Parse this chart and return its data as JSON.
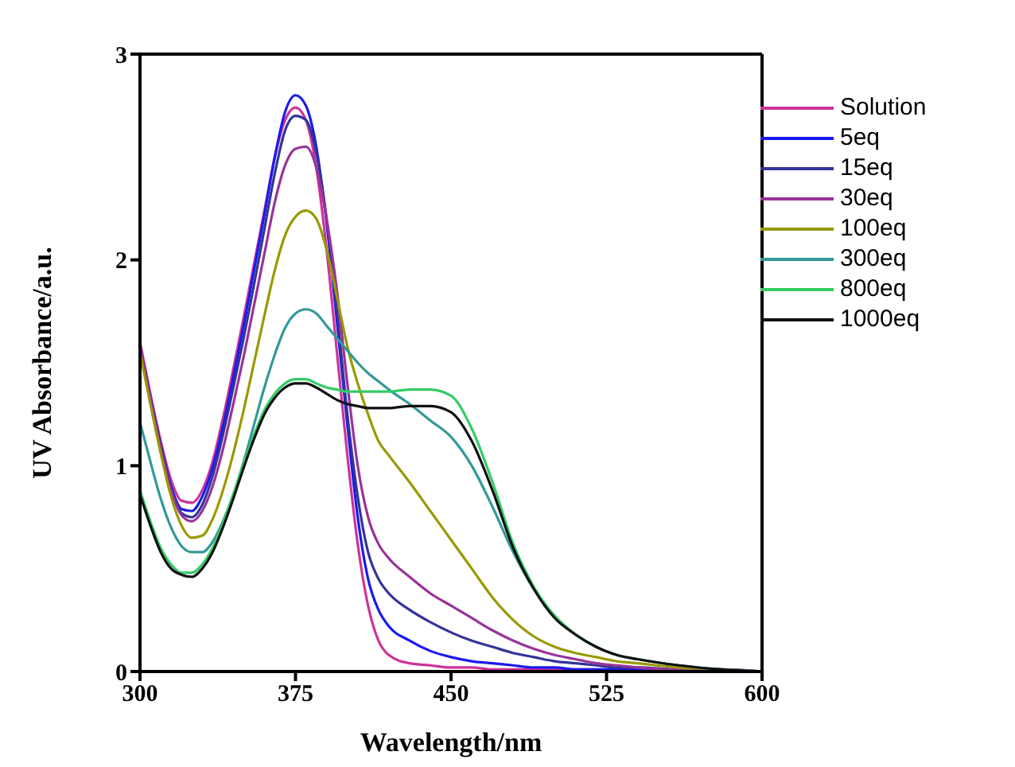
{
  "chart_data": {
    "type": "line",
    "xlabel": "Wavelength/nm",
    "ylabel": "UV Absorbance/a.u.",
    "x": [
      300,
      305,
      310,
      315,
      320,
      325,
      330,
      335,
      340,
      345,
      350,
      355,
      360,
      365,
      370,
      375,
      380,
      385,
      390,
      395,
      400,
      405,
      410,
      415,
      420,
      430,
      440,
      450,
      460,
      470,
      480,
      490,
      500,
      510,
      520,
      530,
      540,
      560,
      580,
      600
    ],
    "xlim": [
      300,
      600
    ],
    "xticks": [
      300,
      375,
      450,
      525,
      600
    ],
    "ylim": [
      0,
      3
    ],
    "yticks": [
      0,
      1,
      2,
      3
    ],
    "grid": false,
    "legend": "top right",
    "marker": "none",
    "line_style": "solid",
    "series": [
      {
        "name": "Solution",
        "color": "#cc3399",
        "values": [
          1.6,
          1.35,
          1.12,
          0.93,
          0.83,
          0.82,
          0.88,
          1.02,
          1.23,
          1.47,
          1.72,
          1.98,
          2.24,
          2.5,
          2.68,
          2.74,
          2.68,
          2.45,
          2.05,
          1.55,
          1.05,
          0.62,
          0.32,
          0.15,
          0.08,
          0.04,
          0.03,
          0.02,
          0.02,
          0.01,
          0.01,
          0.01,
          0.01,
          0.01,
          0.01,
          null,
          null,
          null,
          null,
          null
        ]
      },
      {
        "name": "5eq",
        "color": "#1a1aee",
        "values": [
          null,
          null,
          1.1,
          0.9,
          0.79,
          0.78,
          0.85,
          0.99,
          1.19,
          1.43,
          1.68,
          1.95,
          2.22,
          2.5,
          2.72,
          2.8,
          2.75,
          2.55,
          2.18,
          1.7,
          1.2,
          0.75,
          0.45,
          0.3,
          0.22,
          0.15,
          0.1,
          0.07,
          0.05,
          0.04,
          0.03,
          0.02,
          0.02,
          0.01,
          0.01,
          0.01,
          0.01,
          0,
          null,
          null
        ]
      },
      {
        "name": "15eq",
        "color": "#333399",
        "values": [
          1.58,
          1.33,
          1.1,
          0.89,
          0.77,
          0.75,
          0.81,
          0.95,
          1.15,
          1.38,
          1.62,
          1.88,
          2.15,
          2.42,
          2.63,
          2.7,
          2.68,
          2.52,
          2.2,
          1.75,
          1.25,
          0.85,
          0.58,
          0.45,
          0.38,
          0.3,
          0.24,
          0.19,
          0.15,
          0.12,
          0.09,
          0.07,
          0.05,
          0.04,
          0.03,
          0.02,
          0.02,
          0.01,
          0.01,
          0
        ]
      },
      {
        "name": "30eq",
        "color": "#993399",
        "values": [
          1.57,
          1.32,
          1.08,
          0.88,
          0.76,
          0.73,
          0.78,
          0.9,
          1.08,
          1.3,
          1.53,
          1.78,
          2.03,
          2.28,
          2.46,
          2.54,
          2.55,
          2.45,
          2.2,
          1.85,
          1.4,
          1.0,
          0.75,
          0.62,
          0.55,
          0.46,
          0.38,
          0.32,
          0.26,
          0.2,
          0.15,
          0.11,
          0.08,
          0.06,
          0.04,
          0.03,
          0.02,
          0.01,
          0.01,
          0
        ]
      },
      {
        "name": "100eq",
        "color": "#999900",
        "values": [
          1.55,
          1.3,
          1.06,
          0.85,
          0.71,
          0.65,
          0.66,
          0.74,
          0.88,
          1.06,
          1.27,
          1.5,
          1.73,
          1.95,
          2.12,
          2.21,
          2.24,
          2.2,
          2.05,
          1.82,
          1.58,
          1.4,
          1.25,
          1.12,
          1.05,
          0.92,
          0.78,
          0.64,
          0.5,
          0.36,
          0.25,
          0.17,
          0.12,
          0.09,
          0.07,
          0.05,
          0.04,
          0.02,
          0.01,
          0
        ]
      },
      {
        "name": "300eq",
        "color": "#339999",
        "values": [
          1.21,
          1.02,
          0.84,
          0.7,
          0.61,
          0.58,
          0.58,
          0.63,
          0.73,
          0.86,
          1.02,
          1.2,
          1.38,
          1.54,
          1.67,
          1.74,
          1.76,
          1.74,
          1.68,
          1.62,
          1.56,
          1.5,
          1.45,
          1.41,
          1.37,
          1.3,
          1.22,
          1.14,
          1.0,
          0.8,
          0.58,
          0.4,
          0.27,
          0.18,
          0.12,
          0.08,
          0.06,
          0.03,
          0.01,
          0
        ]
      },
      {
        "name": "800eq",
        "color": "#33cc66",
        "values": [
          0.88,
          0.73,
          0.6,
          0.52,
          0.48,
          0.48,
          0.52,
          0.6,
          0.72,
          0.86,
          1.01,
          1.15,
          1.27,
          1.35,
          1.4,
          1.42,
          1.42,
          1.4,
          1.38,
          1.37,
          1.36,
          1.36,
          1.36,
          1.36,
          1.36,
          1.37,
          1.37,
          1.34,
          1.18,
          0.92,
          0.62,
          0.41,
          0.27,
          0.18,
          0.12,
          null,
          null,
          null,
          null,
          null
        ]
      },
      {
        "name": "1000eq",
        "color": "#111111",
        "values": [
          0.86,
          0.71,
          0.58,
          0.5,
          0.47,
          0.46,
          0.5,
          0.58,
          0.7,
          0.84,
          0.99,
          1.13,
          1.25,
          1.33,
          1.38,
          1.4,
          1.4,
          1.38,
          1.35,
          1.32,
          1.3,
          1.29,
          1.28,
          1.28,
          1.28,
          1.29,
          1.29,
          1.26,
          1.12,
          0.88,
          0.6,
          0.4,
          0.26,
          0.18,
          0.12,
          0.08,
          0.06,
          0.03,
          0.01,
          0
        ]
      }
    ]
  }
}
